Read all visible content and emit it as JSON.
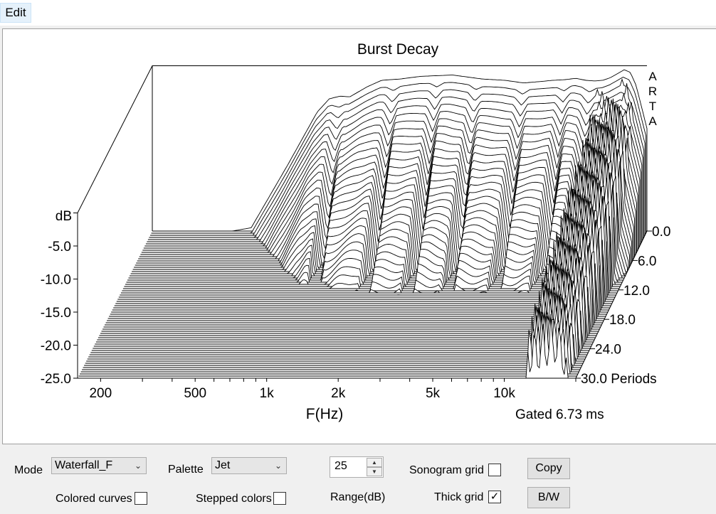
{
  "menu": {
    "edit_label": "Edit"
  },
  "chart_data": {
    "type": "waterfall",
    "title": "Burst Decay",
    "xlabel": "F(Hz)",
    "ylabel": "dB",
    "zlabel": "Periods",
    "x_ticks": [
      "200",
      "500",
      "1k",
      "2k",
      "5k",
      "10k"
    ],
    "y_ticks": [
      "-5.0",
      "-10.0",
      "-15.0",
      "-20.0",
      "-25.0"
    ],
    "z_ticks": [
      "0.0",
      "6.0",
      "12.0",
      "18.0",
      "24.0",
      "30.0 Periods"
    ],
    "watermark": "ARTA",
    "note": "Gated 6.73 ms",
    "xlim": [
      160,
      20000
    ],
    "ylim": [
      -25,
      0
    ],
    "zlim": [
      0,
      30
    ],
    "profile_x_hz": [
      160,
      350,
      420,
      600,
      800,
      900,
      1000,
      1100,
      1300,
      1500,
      1800,
      2200,
      3000,
      4000,
      5000,
      6000,
      7000,
      8000,
      9000,
      10000,
      11000,
      12000,
      13000,
      14000,
      15000,
      16000,
      17000,
      18000,
      20000
    ],
    "profile_y_db": [
      -25,
      -25,
      -24.5,
      -15,
      -7,
      -5,
      -4.6,
      -4.7,
      -3.2,
      -2.2,
      -2.0,
      -1.6,
      -1.4,
      -2.0,
      -2.2,
      -2.6,
      -2.4,
      -2.2,
      -2.1,
      -1.9,
      -2.2,
      -2.3,
      -2.2,
      -1.8,
      -1.2,
      -0.6,
      -1.0,
      -3.0,
      -9.5
    ]
  },
  "controls": {
    "mode_label": "Mode",
    "mode_value": "Waterfall_F",
    "palette_label": "Palette",
    "palette_value": "Jet",
    "range_value": "25",
    "range_label": "Range(dB)",
    "sonogram_grid_label": "Sonogram grid",
    "sonogram_grid_checked": "",
    "colored_curves_label": "Colored curves",
    "colored_curves_checked": "",
    "stepped_colors_label": "Stepped colors",
    "stepped_colors_checked": "",
    "thick_grid_label": "Thick grid",
    "thick_grid_checked": "✓",
    "copy_label": "Copy",
    "bw_label": "B/W"
  }
}
